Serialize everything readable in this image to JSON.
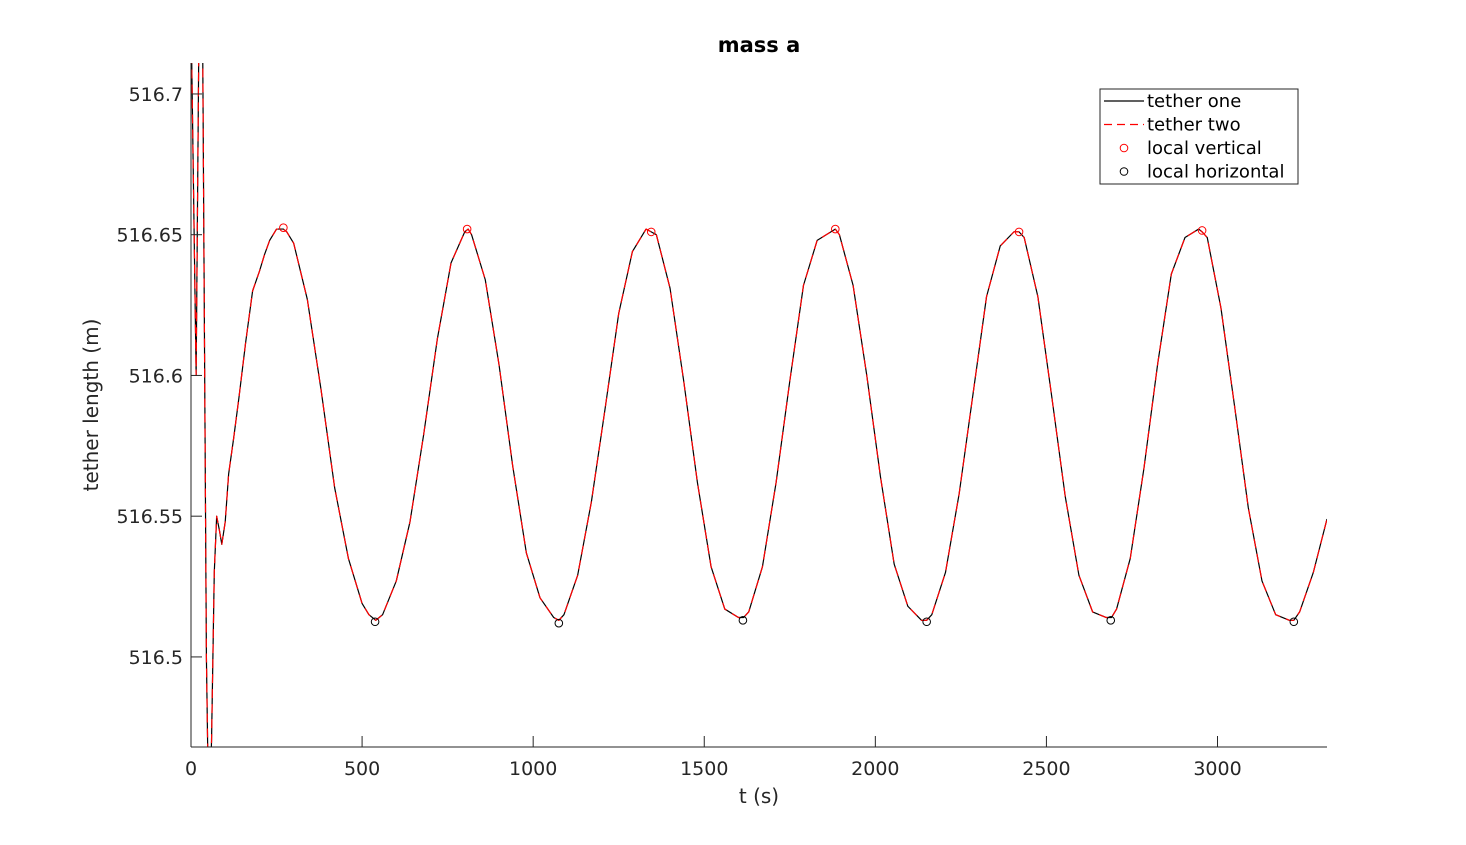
{
  "chart_data": {
    "type": "line",
    "title": "mass a",
    "xlabel": "t (s)",
    "ylabel": "tether length (m)",
    "xlim": [
      0,
      3320
    ],
    "ylim": [
      516.468,
      516.711
    ],
    "xticks": [
      0,
      500,
      1000,
      1500,
      2000,
      2500,
      3000
    ],
    "xtick_labels": [
      "0",
      "500",
      "1000",
      "1500",
      "2000",
      "2500",
      "3000"
    ],
    "yticks": [
      516.5,
      516.55,
      516.6,
      516.65,
      516.7
    ],
    "ytick_labels": [
      "516.5",
      "516.55",
      "516.6",
      "516.65",
      "516.7"
    ],
    "grid": false,
    "legend_position": "top-right",
    "colors": {
      "tether_one": "#000000",
      "tether_two": "#ff0000",
      "vertical_marker": "#ff0000",
      "horizontal_marker": "#000000",
      "axis": "#262626"
    },
    "series": [
      {
        "name": "tether one",
        "style": "solid",
        "x": [
          0,
          15,
          23,
          30,
          45,
          52,
          60,
          68,
          75,
          83,
          90,
          100,
          110,
          125,
          140,
          160,
          180,
          200,
          215,
          230,
          250,
          270,
          280,
          300,
          340,
          380,
          420,
          460,
          500,
          520,
          540,
          560,
          600,
          640,
          680,
          720,
          760,
          800,
          810,
          820,
          860,
          900,
          940,
          980,
          1020,
          1060,
          1075,
          1090,
          1130,
          1170,
          1210,
          1250,
          1290,
          1330,
          1345,
          1360,
          1400,
          1440,
          1480,
          1520,
          1560,
          1600,
          1615,
          1630,
          1670,
          1710,
          1750,
          1790,
          1830,
          1870,
          1883,
          1895,
          1935,
          1975,
          2015,
          2055,
          2095,
          2135,
          2150,
          2165,
          2205,
          2245,
          2285,
          2325,
          2365,
          2405,
          2420,
          2435,
          2475,
          2515,
          2555,
          2595,
          2635,
          2675,
          2690,
          2705,
          2745,
          2785,
          2825,
          2865,
          2905,
          2945,
          2955,
          2970,
          3010,
          3050,
          3090,
          3130,
          3170,
          3210,
          3223,
          3240,
          3280,
          3320
        ],
        "y": [
          516.73,
          516.6,
          516.72,
          516.8,
          516.5,
          516.44,
          516.47,
          516.53,
          516.55,
          516.545,
          516.54,
          516.548,
          516.565,
          516.578,
          516.592,
          516.612,
          516.63,
          516.637,
          516.643,
          516.648,
          516.652,
          516.652,
          516.651,
          516.647,
          516.627,
          516.595,
          516.56,
          516.535,
          516.519,
          516.515,
          516.513,
          516.515,
          516.527,
          516.548,
          516.579,
          516.613,
          516.64,
          516.651,
          516.652,
          516.65,
          516.634,
          516.604,
          516.568,
          516.537,
          516.521,
          516.514,
          516.513,
          516.515,
          516.529,
          516.555,
          516.588,
          516.622,
          516.644,
          516.652,
          516.651,
          516.65,
          516.631,
          516.598,
          516.562,
          516.532,
          516.517,
          516.514,
          516.514,
          516.516,
          516.532,
          516.562,
          516.598,
          516.632,
          516.648,
          516.651,
          516.652,
          516.65,
          516.632,
          516.6,
          516.564,
          516.533,
          516.518,
          516.513,
          516.513,
          516.515,
          516.53,
          516.558,
          516.593,
          516.628,
          516.646,
          516.651,
          516.651,
          516.649,
          516.628,
          516.593,
          516.557,
          516.529,
          516.516,
          516.514,
          516.514,
          516.517,
          516.535,
          516.567,
          516.604,
          516.636,
          516.649,
          516.652,
          516.651,
          516.649,
          516.624,
          516.589,
          516.553,
          516.527,
          516.515,
          516.513,
          516.513,
          516.516,
          516.53,
          516.549
        ]
      },
      {
        "name": "tether two",
        "style": "dashed",
        "x": [
          0,
          15,
          23,
          30,
          45,
          52,
          60,
          68,
          75,
          83,
          90,
          100,
          110,
          125,
          140,
          160,
          180,
          200,
          215,
          230,
          250,
          270,
          280,
          300,
          340,
          380,
          420,
          460,
          500,
          520,
          540,
          560,
          600,
          640,
          680,
          720,
          760,
          800,
          810,
          820,
          860,
          900,
          940,
          980,
          1020,
          1060,
          1075,
          1090,
          1130,
          1170,
          1210,
          1250,
          1290,
          1330,
          1345,
          1360,
          1400,
          1440,
          1480,
          1520,
          1560,
          1600,
          1615,
          1630,
          1670,
          1710,
          1750,
          1790,
          1830,
          1870,
          1883,
          1895,
          1935,
          1975,
          2015,
          2055,
          2095,
          2135,
          2150,
          2165,
          2205,
          2245,
          2285,
          2325,
          2365,
          2405,
          2420,
          2435,
          2475,
          2515,
          2555,
          2595,
          2635,
          2675,
          2690,
          2705,
          2745,
          2785,
          2825,
          2865,
          2905,
          2945,
          2955,
          2970,
          3010,
          3050,
          3090,
          3130,
          3170,
          3210,
          3223,
          3240,
          3280,
          3320
        ],
        "y": [
          516.73,
          516.6,
          516.72,
          516.8,
          516.5,
          516.44,
          516.47,
          516.53,
          516.55,
          516.545,
          516.54,
          516.548,
          516.565,
          516.578,
          516.592,
          516.612,
          516.63,
          516.637,
          516.643,
          516.648,
          516.652,
          516.652,
          516.651,
          516.647,
          516.627,
          516.595,
          516.56,
          516.535,
          516.519,
          516.515,
          516.513,
          516.515,
          516.527,
          516.548,
          516.579,
          516.613,
          516.64,
          516.651,
          516.652,
          516.65,
          516.634,
          516.604,
          516.568,
          516.537,
          516.521,
          516.514,
          516.513,
          516.515,
          516.529,
          516.555,
          516.588,
          516.622,
          516.644,
          516.652,
          516.651,
          516.65,
          516.631,
          516.598,
          516.562,
          516.532,
          516.517,
          516.514,
          516.514,
          516.516,
          516.532,
          516.562,
          516.598,
          516.632,
          516.648,
          516.651,
          516.652,
          516.65,
          516.632,
          516.6,
          516.564,
          516.533,
          516.518,
          516.513,
          516.513,
          516.515,
          516.53,
          516.558,
          516.593,
          516.628,
          516.646,
          516.651,
          516.651,
          516.649,
          516.628,
          516.593,
          516.557,
          516.529,
          516.516,
          516.514,
          516.514,
          516.517,
          516.535,
          516.567,
          516.604,
          516.636,
          516.649,
          516.652,
          516.651,
          516.649,
          516.624,
          516.589,
          516.553,
          516.527,
          516.515,
          516.513,
          516.513,
          516.516,
          516.53,
          516.549
        ]
      },
      {
        "name": "local vertical",
        "style": "marker-circle",
        "x": [
          270,
          807,
          1345,
          1883,
          2420,
          2955
        ],
        "y": [
          516.6525,
          516.652,
          516.651,
          516.652,
          516.651,
          516.6515
        ]
      },
      {
        "name": "local horizontal",
        "style": "marker-circle",
        "x": [
          538,
          1075,
          1613,
          2150,
          2688,
          3223
        ],
        "y": [
          516.5125,
          516.512,
          516.513,
          516.5125,
          516.513,
          516.5125
        ]
      }
    ]
  }
}
